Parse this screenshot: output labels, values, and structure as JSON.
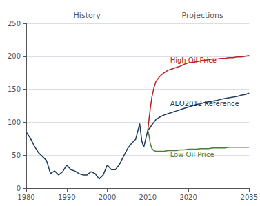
{
  "chart_data": {
    "type": "line",
    "xlim": [
      1980,
      2035
    ],
    "xticks": [
      1980,
      1990,
      2000,
      2010,
      2020,
      2035
    ],
    "ylim": [
      0,
      250
    ],
    "yticks": [
      0,
      50,
      100,
      150,
      200,
      250
    ],
    "grid": true,
    "series": [
      {
        "color": "#1f3a5f",
        "x": [
          1980,
          1981,
          1982,
          1983,
          1984,
          1985,
          1986,
          1987,
          1988,
          1989,
          1990,
          1991,
          1992,
          1993,
          1994,
          1995,
          1996,
          1997,
          1998,
          1999,
          2000,
          2001,
          2002,
          2003,
          2004,
          2005,
          2006,
          2007,
          2008,
          2008.5,
          2009,
          2009.5,
          2010
        ],
        "values": [
          85,
          76,
          64,
          54,
          48,
          42,
          22,
          26,
          20,
          25,
          35,
          28,
          26,
          22,
          20,
          20,
          25,
          22,
          14,
          20,
          35,
          28,
          28,
          36,
          48,
          60,
          68,
          74,
          98,
          72,
          62,
          75,
          88
        ]
      },
      {
        "color": "#b82020",
        "x": [
          2010,
          2010.3,
          2010.6,
          2011,
          2011.5,
          2012,
          2013,
          2014,
          2015,
          2016,
          2017,
          2018,
          2019,
          2020,
          2021,
          2022,
          2023,
          2024,
          2025,
          2026,
          2027,
          2028,
          2029,
          2030,
          2031,
          2032,
          2033,
          2034,
          2035
        ],
        "values": [
          88,
          105,
          120,
          138,
          152,
          162,
          170,
          175,
          179,
          181,
          183,
          185,
          188,
          190,
          191,
          192,
          193,
          194,
          195,
          196,
          196,
          197,
          197,
          198,
          198,
          199,
          199,
          200,
          201
        ]
      },
      {
        "color": "#1f3a5f",
        "x": [
          2010,
          2010.3,
          2010.6,
          2011,
          2011.5,
          2012,
          2013,
          2014,
          2015,
          2016,
          2017,
          2018,
          2019,
          2020,
          2021,
          2022,
          2023,
          2024,
          2025,
          2026,
          2027,
          2028,
          2029,
          2030,
          2031,
          2032,
          2033,
          2034,
          2035
        ],
        "values": [
          88,
          90,
          92,
          96,
          100,
          104,
          108,
          111,
          113,
          115,
          117,
          119,
          121,
          123,
          125,
          127,
          128,
          130,
          131,
          132,
          133,
          135,
          136,
          137,
          138,
          139,
          141,
          142,
          144
        ]
      },
      {
        "color": "#4a7c3f",
        "x": [
          2010,
          2010.3,
          2010.6,
          2011,
          2011.5,
          2012,
          2013,
          2014,
          2015,
          2016,
          2017,
          2018,
          2019,
          2020,
          2021,
          2022,
          2023,
          2024,
          2025,
          2026,
          2027,
          2028,
          2029,
          2030,
          2031,
          2032,
          2033,
          2034,
          2035
        ],
        "values": [
          88,
          80,
          68,
          60,
          57,
          56,
          56,
          56,
          57,
          57,
          57,
          58,
          58,
          59,
          59,
          59,
          60,
          60,
          60,
          61,
          61,
          61,
          61,
          62,
          62,
          62,
          62,
          62,
          62
        ]
      }
    ],
    "vline": {
      "x": 2010,
      "color": "#aaaaaa"
    },
    "annotations": [
      {
        "text": "High Oil Price",
        "x": 2015.5,
        "y": 194,
        "color": "#b82020"
      },
      {
        "text": "AEO2012 Reference",
        "x": 2015.5,
        "y": 128,
        "color": "#1f3a5f"
      },
      {
        "text": "Low Oil Price",
        "x": 2015.5,
        "y": 51,
        "color": "#4a7c3f"
      },
      {
        "text": "History",
        "x": 1995,
        "color": "#555555"
      },
      {
        "text": "Projections",
        "x": 2023.5,
        "color": "#555555"
      }
    ]
  }
}
